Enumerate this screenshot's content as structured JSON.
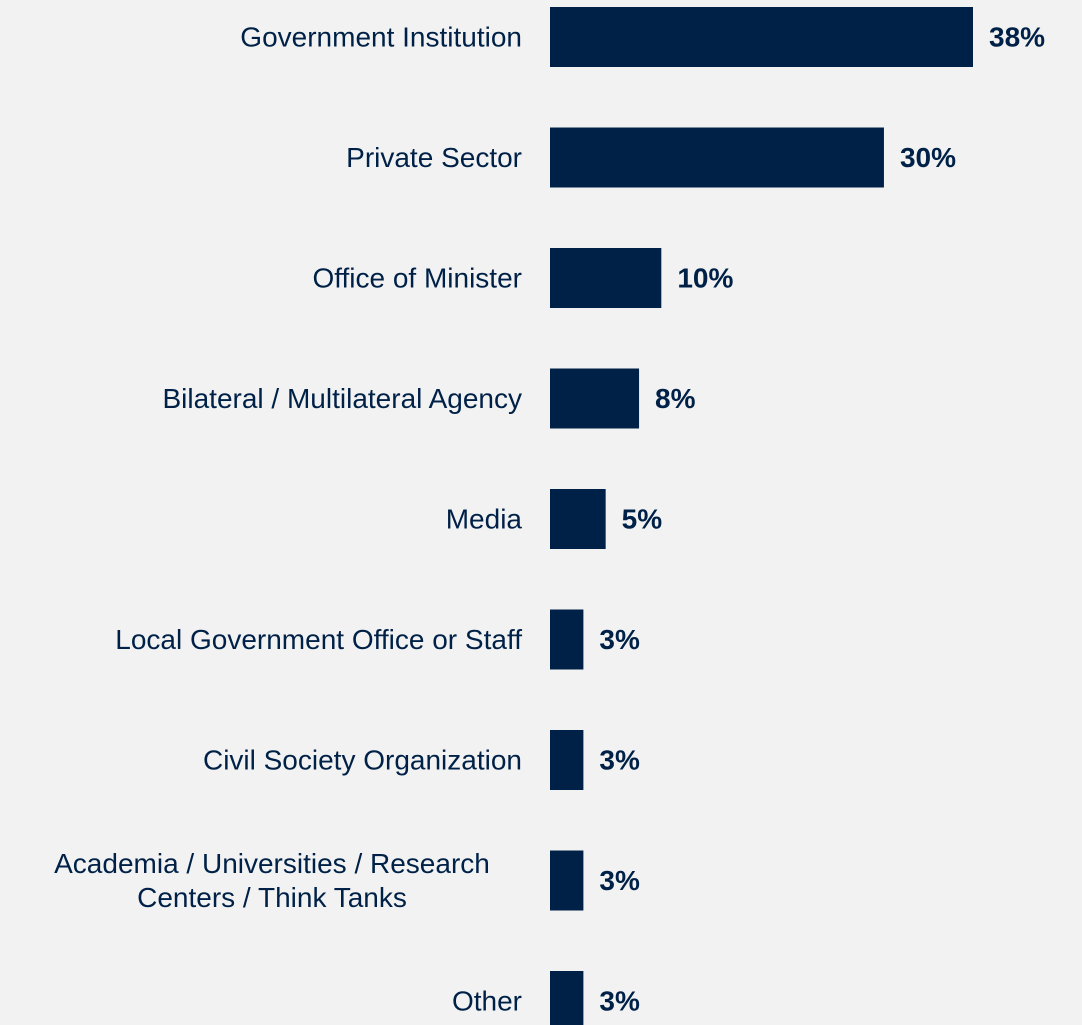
{
  "chart_data": {
    "type": "bar",
    "orientation": "horizontal",
    "categories": [
      "Government Institution",
      "Private Sector",
      "Office of Minister",
      "Bilateral / Multilateral Agency",
      "Media",
      "Local Government Office or Staff",
      "Civil Society Organization",
      "Academia / Universities / Research Centers / Think Tanks",
      "Other"
    ],
    "category_lines": [
      [
        "Government Institution"
      ],
      [
        "Private Sector"
      ],
      [
        "Office of Minister"
      ],
      [
        "Bilateral / Multilateral Agency"
      ],
      [
        "Media"
      ],
      [
        "Local Government Office or Staff"
      ],
      [
        "Civil Society Organization"
      ],
      [
        "Academia / Universities / Research",
        "Centers / Think Tanks"
      ],
      [
        "Other"
      ]
    ],
    "values": [
      38,
      30,
      10,
      8,
      5,
      3,
      3,
      3,
      3
    ],
    "value_labels": [
      "38%",
      "30%",
      "10%",
      "8%",
      "5%",
      "3%",
      "3%",
      "3%",
      "3%"
    ],
    "unit": "%",
    "xlim": [
      0,
      38
    ],
    "grid": false,
    "legend": "none",
    "colors": {
      "bar": "#002147",
      "text": "#002147",
      "background": "#f2f2f2"
    }
  }
}
